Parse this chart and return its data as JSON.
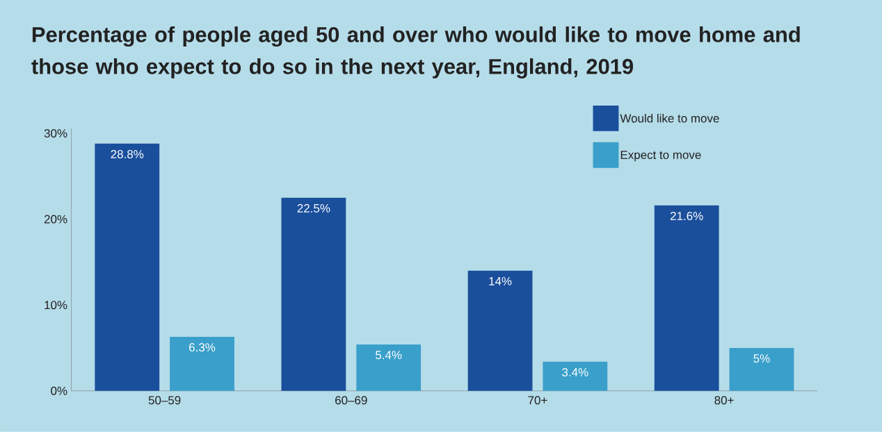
{
  "chart_data": {
    "type": "bar",
    "title": "Percentage of people aged 50 and over who would like to move home and those who expect to do so in the next year, England, 2019",
    "categories": [
      "50–59",
      "60–69",
      "70+",
      "80+"
    ],
    "series": [
      {
        "name": "Would like to move",
        "color": "#1a4f9c",
        "values": [
          28.8,
          22.5,
          14,
          21.6
        ],
        "value_labels": [
          "28.8%",
          "22.5%",
          "14%",
          "21.6%"
        ]
      },
      {
        "name": "Expect to move",
        "color": "#3a9fca",
        "values": [
          6.3,
          5.4,
          3.4,
          5
        ],
        "value_labels": [
          "6.3%",
          "5.4%",
          "3.4%",
          "5%"
        ]
      }
    ],
    "ylim": [
      0,
      30.6
    ],
    "yticks": [
      {
        "value": 0,
        "label": "0%"
      },
      {
        "value": 10,
        "label": "10%"
      },
      {
        "value": 20,
        "label": "20%"
      },
      {
        "value": 30,
        "label": "30%"
      }
    ],
    "data_labels": true,
    "legend": "top right"
  }
}
